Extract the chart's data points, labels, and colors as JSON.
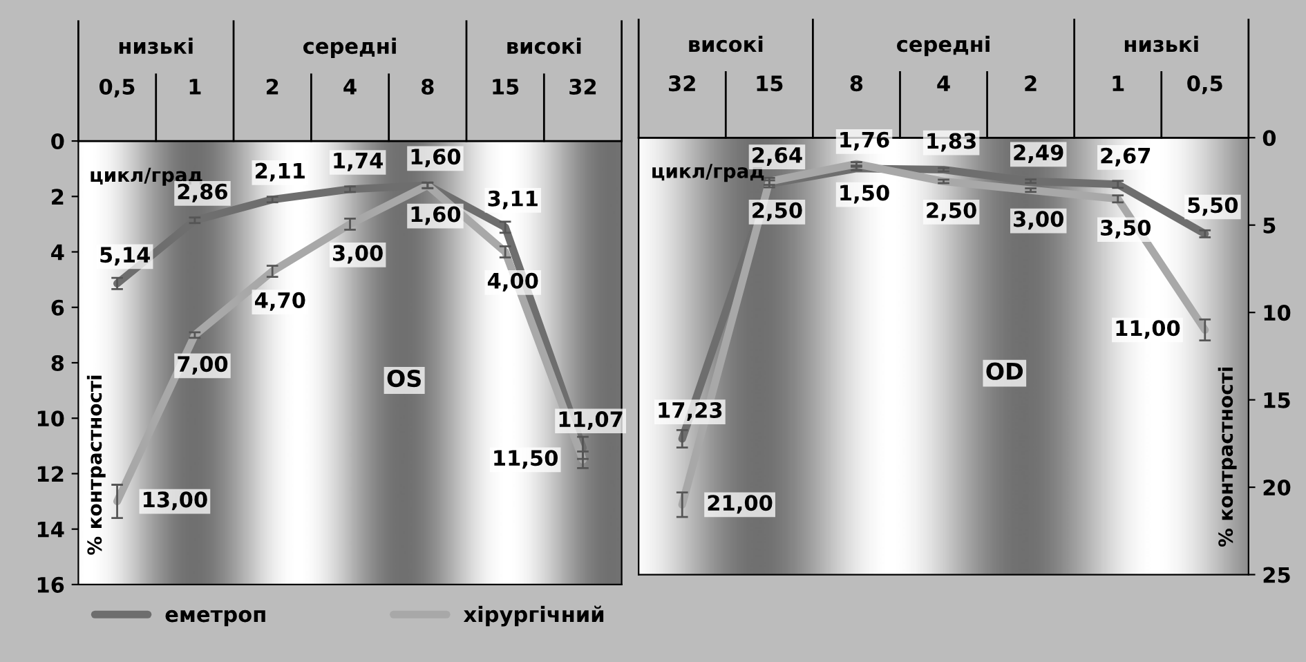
{
  "chart_data": [
    {
      "type": "line",
      "title": "OS",
      "xlabel": "цикл/град",
      "ylabel": "% контрастності",
      "annotations": [
        "низькі",
        "середні",
        "високі"
      ],
      "categories": [
        "0,5",
        "1",
        "2",
        "4",
        "8",
        "15",
        "32"
      ],
      "ylim": [
        16,
        0
      ],
      "yticks": [
        0,
        2,
        4,
        6,
        8,
        10,
        12,
        14,
        16
      ],
      "legend": "bottom",
      "series": [
        {
          "name": "еметроп",
          "color": "#6e6e6e",
          "values": [
            5.14,
            2.86,
            2.11,
            1.74,
            1.6,
            3.11,
            11.07
          ],
          "errors": [
            0.2,
            0.1,
            0.1,
            0.1,
            0.1,
            0.2,
            0.4
          ],
          "value_labels": [
            "5,14",
            "2,86",
            "2,11",
            "1,74",
            "1,60",
            "3,11",
            "11,07"
          ]
        },
        {
          "name": "хірургічний",
          "color": "#a8a8a8",
          "values": [
            13.0,
            7.0,
            4.7,
            3.0,
            1.6,
            4.0,
            11.5
          ],
          "errors": [
            0.6,
            0.1,
            0.2,
            0.2,
            0.1,
            0.2,
            0.3
          ],
          "value_labels": [
            "13,00",
            "7,00",
            "4,70",
            "3,00",
            "1,60",
            "4,00",
            "11,50"
          ]
        }
      ]
    },
    {
      "type": "line",
      "title": "OD",
      "xlabel": "цикл/град",
      "ylabel": "% контрастності",
      "annotations": [
        "високі",
        "середні",
        "низькі"
      ],
      "categories": [
        "32",
        "15",
        "8",
        "4",
        "2",
        "1",
        "0,5"
      ],
      "ylim": [
        25,
        0
      ],
      "yticks": [
        0,
        5,
        10,
        15,
        20,
        25
      ],
      "series": [
        {
          "color": "#6e6e6e",
          "values": [
            17.23,
            2.64,
            1.76,
            1.83,
            2.49,
            2.67,
            5.5
          ],
          "errors": [
            0.5,
            0.2,
            0.1,
            0.1,
            0.1,
            0.2,
            0.2
          ],
          "value_labels": [
            "17,23",
            "2,64",
            "1,76",
            "1,83",
            "2,49",
            "2,67",
            "5,50"
          ]
        },
        {
          "color": "#a8a8a8",
          "values": [
            21.0,
            2.5,
            1.5,
            2.5,
            3.0,
            3.5,
            11.0
          ],
          "errors": [
            0.7,
            0.2,
            0.1,
            0.1,
            0.1,
            0.2,
            0.6
          ],
          "value_labels": [
            "21,00",
            "2,50",
            "1,50",
            "2,50",
            "3,00",
            "3,50",
            "11,00"
          ]
        }
      ]
    }
  ]
}
